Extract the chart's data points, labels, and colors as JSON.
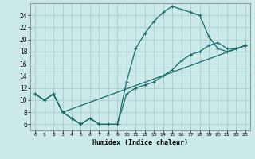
{
  "xlabel": "Humidex (Indice chaleur)",
  "bg_color": "#cce9e9",
  "grid_color": "#aad0d0",
  "line_color": "#1a6b6b",
  "xlim": [
    -0.5,
    23.5
  ],
  "ylim": [
    5.0,
    26.0
  ],
  "xticks": [
    0,
    1,
    2,
    3,
    4,
    5,
    6,
    7,
    8,
    9,
    10,
    11,
    12,
    13,
    14,
    15,
    16,
    17,
    18,
    19,
    20,
    21,
    22,
    23
  ],
  "yticks": [
    6,
    8,
    10,
    12,
    14,
    16,
    18,
    20,
    22,
    24
  ],
  "line1_x": [
    0,
    1,
    2,
    3,
    4,
    5,
    6,
    7,
    8,
    9,
    10,
    11,
    12,
    13,
    14,
    15,
    16,
    17,
    18,
    19,
    20,
    21,
    22,
    23
  ],
  "line1_y": [
    11,
    10,
    11,
    8,
    7,
    6,
    7,
    6,
    6,
    6,
    13,
    18.5,
    21,
    23,
    24.5,
    25.5,
    25,
    24.5,
    24,
    20.5,
    18.5,
    18,
    18.5,
    19
  ],
  "line2_x": [
    0,
    1,
    2,
    3,
    4,
    5,
    6,
    7,
    8,
    9,
    10,
    11,
    12,
    13,
    14,
    15,
    16,
    17,
    18,
    19,
    20,
    21,
    22,
    23
  ],
  "line2_y": [
    11,
    10,
    11,
    8,
    7,
    6,
    7,
    6,
    6,
    6,
    11,
    12,
    12.5,
    13,
    14,
    15,
    16.5,
    17.5,
    18,
    19,
    19.5,
    18.5,
    18.5,
    19
  ],
  "line3_x": [
    0,
    1,
    2,
    3,
    23
  ],
  "line3_y": [
    11,
    10,
    11,
    8,
    19
  ]
}
